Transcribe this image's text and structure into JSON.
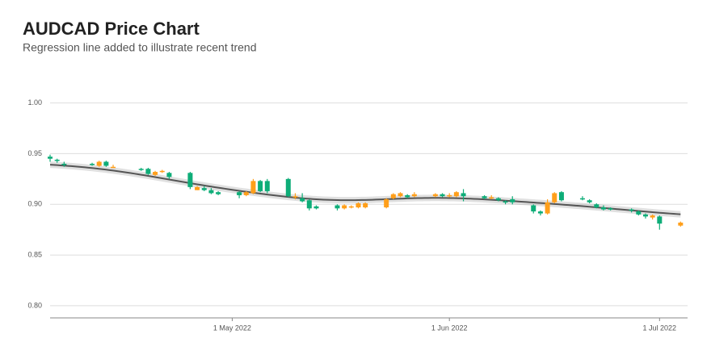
{
  "chart_data": {
    "type": "candlestick",
    "title": "AUDCAD Price Chart",
    "subtitle": "Regression line added to illustrate recent trend",
    "x": [
      "2022-04-05",
      "2022-04-06",
      "2022-04-07",
      "2022-04-11",
      "2022-04-12",
      "2022-04-13",
      "2022-04-14",
      "2022-04-18",
      "2022-04-19",
      "2022-04-20",
      "2022-04-21",
      "2022-04-22",
      "2022-04-25",
      "2022-04-26",
      "2022-04-27",
      "2022-04-28",
      "2022-04-29",
      "2022-05-02",
      "2022-05-03",
      "2022-05-04",
      "2022-05-05",
      "2022-05-06",
      "2022-05-09",
      "2022-05-10",
      "2022-05-11",
      "2022-05-12",
      "2022-05-13",
      "2022-05-16",
      "2022-05-17",
      "2022-05-18",
      "2022-05-19",
      "2022-05-20",
      "2022-05-23",
      "2022-05-24",
      "2022-05-25",
      "2022-05-26",
      "2022-05-27",
      "2022-05-30",
      "2022-05-31",
      "2022-06-01",
      "2022-06-02",
      "2022-06-03",
      "2022-06-06",
      "2022-06-07",
      "2022-06-08",
      "2022-06-09",
      "2022-06-10",
      "2022-06-13",
      "2022-06-14",
      "2022-06-15",
      "2022-06-16",
      "2022-06-17",
      "2022-06-20",
      "2022-06-21",
      "2022-06-22",
      "2022-06-23",
      "2022-06-24",
      "2022-06-27",
      "2022-06-28",
      "2022-06-29",
      "2022-06-30",
      "2022-07-01",
      "2022-07-04"
    ],
    "open": [
      0.947,
      0.944,
      0.94,
      0.94,
      0.938,
      0.942,
      0.937,
      0.935,
      0.935,
      0.929,
      0.932,
      0.931,
      0.931,
      0.914,
      0.916,
      0.914,
      0.912,
      0.912,
      0.909,
      0.911,
      0.923,
      0.923,
      0.925,
      0.907,
      0.906,
      0.904,
      0.898,
      0.899,
      0.896,
      0.897,
      0.897,
      0.897,
      0.897,
      0.906,
      0.908,
      0.909,
      0.908,
      0.908,
      0.91,
      0.908,
      0.908,
      0.911,
      0.908,
      0.906,
      0.906,
      0.903,
      0.905,
      0.899,
      0.893,
      0.891,
      0.902,
      0.912,
      0.906,
      0.904,
      0.9,
      0.897,
      0.896,
      0.895,
      0.893,
      0.89,
      0.887,
      0.888,
      0.879
    ],
    "high": [
      0.949,
      0.945,
      0.942,
      0.941,
      0.943,
      0.943,
      0.939,
      0.936,
      0.936,
      0.933,
      0.934,
      0.932,
      0.932,
      0.918,
      0.918,
      0.916,
      0.913,
      0.913,
      0.913,
      0.925,
      0.924,
      0.925,
      0.926,
      0.911,
      0.911,
      0.905,
      0.899,
      0.9,
      0.9,
      0.899,
      0.902,
      0.902,
      0.906,
      0.911,
      0.912,
      0.91,
      0.912,
      0.911,
      0.911,
      0.911,
      0.913,
      0.915,
      0.909,
      0.909,
      0.907,
      0.904,
      0.908,
      0.9,
      0.894,
      0.905,
      0.912,
      0.913,
      0.908,
      0.905,
      0.901,
      0.899,
      0.897,
      0.896,
      0.894,
      0.891,
      0.89,
      0.889,
      0.883
    ],
    "low": [
      0.942,
      0.941,
      0.937,
      0.938,
      0.937,
      0.937,
      0.936,
      0.933,
      0.929,
      0.928,
      0.931,
      0.925,
      0.915,
      0.914,
      0.913,
      0.91,
      0.909,
      0.906,
      0.908,
      0.91,
      0.912,
      0.911,
      0.907,
      0.905,
      0.902,
      0.894,
      0.895,
      0.894,
      0.895,
      0.896,
      0.896,
      0.896,
      0.896,
      0.905,
      0.907,
      0.906,
      0.907,
      0.907,
      0.907,
      0.907,
      0.907,
      0.903,
      0.905,
      0.905,
      0.903,
      0.9,
      0.9,
      0.891,
      0.889,
      0.89,
      0.901,
      0.903,
      0.904,
      0.901,
      0.896,
      0.894,
      0.894,
      0.892,
      0.889,
      0.886,
      0.885,
      0.875,
      0.878
    ],
    "close": [
      0.945,
      0.943,
      0.939,
      0.939,
      0.942,
      0.938,
      0.937,
      0.934,
      0.93,
      0.932,
      0.933,
      0.927,
      0.917,
      0.917,
      0.914,
      0.911,
      0.91,
      0.909,
      0.912,
      0.923,
      0.913,
      0.913,
      0.908,
      0.908,
      0.903,
      0.896,
      0.896,
      0.896,
      0.899,
      0.898,
      0.901,
      0.901,
      0.905,
      0.91,
      0.911,
      0.907,
      0.91,
      0.91,
      0.908,
      0.909,
      0.912,
      0.908,
      0.906,
      0.907,
      0.904,
      0.902,
      0.902,
      0.893,
      0.891,
      0.902,
      0.911,
      0.904,
      0.905,
      0.902,
      0.897,
      0.895,
      0.895,
      0.894,
      0.89,
      0.888,
      0.889,
      0.881,
      0.882
    ],
    "up_color": "#ff9f1a",
    "down_color": "#0ead78",
    "xlim": [
      "2022-04-05",
      "2022-07-05"
    ],
    "xticks": [
      {
        "value": "2022-05-01",
        "label": "1 May 2022"
      },
      {
        "value": "2022-06-01",
        "label": "1 Jun 2022"
      },
      {
        "value": "2022-07-01",
        "label": "1 Jul 2022"
      }
    ],
    "ylim": [
      0.788,
      1.014
    ],
    "yticks": [
      {
        "value": 0.8,
        "label": "0.80"
      },
      0.85,
      {
        "value": 0.9,
        "label": "0.90"
      },
      0.95,
      {
        "value": 1.0,
        "label": "1.00"
      }
    ],
    "grid": true,
    "trend_line": true
  }
}
